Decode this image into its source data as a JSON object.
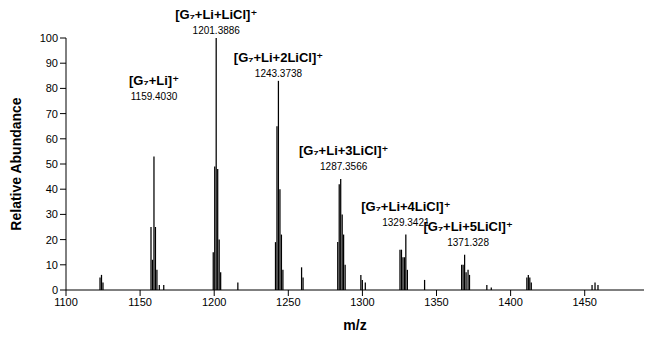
{
  "chart_data": {
    "type": "bar",
    "x_label": "m/z",
    "y_label": "Relative Abundance",
    "color": "#000000",
    "xlim": [
      1100,
      1490
    ],
    "xticks": [
      1100,
      1150,
      1200,
      1250,
      1300,
      1350,
      1400,
      1450
    ],
    "ylim": [
      0,
      100
    ],
    "yticks": [
      0,
      10,
      20,
      30,
      40,
      50,
      60,
      70,
      80,
      90,
      100
    ],
    "x": [
      1123,
      1124,
      1125,
      1157.4,
      1158.4,
      1159.403,
      1160.4,
      1161.4,
      1163,
      1166,
      1199.4,
      1200.4,
      1201.3886,
      1202.4,
      1203.4,
      1204.4,
      1216,
      1241.4,
      1242.4,
      1243.3738,
      1244.4,
      1245.4,
      1246.4,
      1259,
      1260,
      1283.4,
      1284.4,
      1285.4,
      1286.4,
      1287.3566,
      1288.4,
      1299,
      1300,
      1302,
      1325.4,
      1326.4,
      1327.4,
      1328.4,
      1329.3421,
      1330.4,
      1342,
      1367,
      1368,
      1369,
      1370,
      1371.328,
      1372.3,
      1384,
      1387,
      1411,
      1412,
      1413,
      1414,
      1455,
      1457,
      1459
    ],
    "values": [
      5,
      6,
      3,
      25,
      12,
      53,
      25,
      8,
      2,
      2,
      15,
      49,
      100,
      48,
      20,
      7,
      3,
      19,
      65,
      83,
      40,
      22,
      8,
      9,
      5,
      19,
      42,
      44,
      30,
      22,
      10,
      6,
      4,
      3,
      16,
      16,
      13,
      13,
      22,
      8,
      4,
      10,
      10,
      14,
      7,
      8,
      6,
      2,
      1,
      5,
      6,
      5,
      3,
      2,
      3,
      2
    ],
    "annotations": [
      {
        "text": "[G₇+Li]⁺",
        "label": "1159.4030",
        "x": 1159.403,
        "y": 74
      },
      {
        "text": "[G₇+Li+LiCl]⁺",
        "label": "1201.3886",
        "x": 1201.3886,
        "y": 100
      },
      {
        "text": "[G₇+Li+2LiCl]⁺",
        "label": "1243.3738",
        "x": 1243.3738,
        "y": 83
      },
      {
        "text": "[G₇+Li+3LiCl]⁺",
        "label": "1287.3566",
        "x": 1287.3566,
        "y": 46
      },
      {
        "text": "[G₇+Li+4LiCl]⁺",
        "label": "1329.3421",
        "x": 1329.3421,
        "y": 24
      },
      {
        "text": "[G₇+Li+5LiCl]⁺",
        "label": "1371.328",
        "x": 1371.328,
        "y": 16
      }
    ]
  }
}
